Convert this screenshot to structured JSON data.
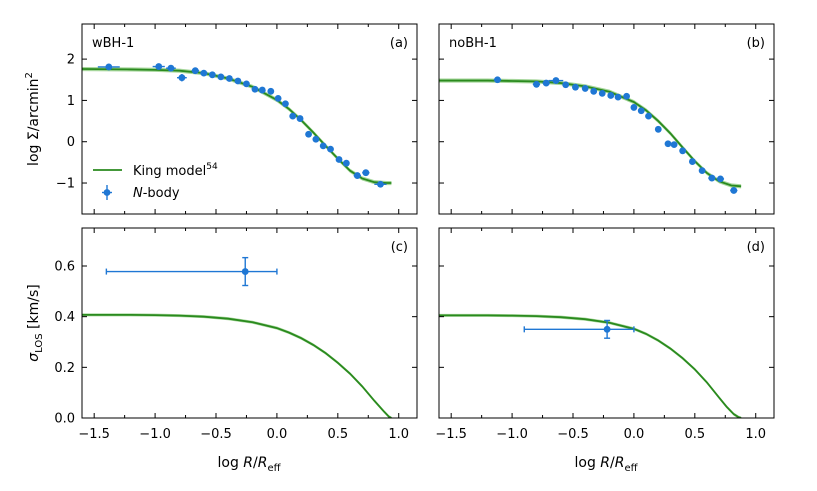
{
  "colors": {
    "model": "#2a8a1e",
    "band": "#7fc46f",
    "nbody": "#1f77d4"
  },
  "chart_data": [
    {
      "id": "a",
      "type": "scatter",
      "panel_label": "(a)",
      "model_label": "wBH-1",
      "xlim": [
        -1.6,
        1.15
      ],
      "ylim": [
        -1.75,
        2.85
      ],
      "yticks": [
        2,
        1,
        0,
        -1
      ],
      "ylabel_parts": [
        "log ",
        "Σ",
        "/arcmin",
        "2"
      ],
      "model_curve": {
        "x": [
          -1.6,
          -1.2,
          -1.0,
          -0.8,
          -0.6,
          -0.4,
          -0.2,
          0.0,
          0.1,
          0.2,
          0.3,
          0.4,
          0.5,
          0.6,
          0.7,
          0.8,
          0.9,
          0.94
        ],
        "y": [
          1.76,
          1.75,
          1.74,
          1.72,
          1.66,
          1.53,
          1.33,
          1.01,
          0.79,
          0.52,
          0.22,
          -0.1,
          -0.41,
          -0.7,
          -0.89,
          -0.98,
          -1.0,
          -1.0
        ]
      },
      "model_band": 0.05,
      "points": [
        {
          "x": -1.38,
          "y": 1.81,
          "xerr": 0.09,
          "yerr": 0.07
        },
        {
          "x": -0.97,
          "y": 1.82,
          "xerr": 0.05,
          "yerr": 0.06
        },
        {
          "x": -0.87,
          "y": 1.78,
          "xerr": 0.04,
          "yerr": 0.06
        },
        {
          "x": -0.78,
          "y": 1.55,
          "xerr": 0.04,
          "yerr": 0.09
        },
        {
          "x": -0.67,
          "y": 1.72,
          "xerr": 0.03,
          "yerr": 0.05
        },
        {
          "x": -0.6,
          "y": 1.66,
          "xerr": 0.03,
          "yerr": 0.05
        },
        {
          "x": -0.53,
          "y": 1.62,
          "xerr": 0.02,
          "yerr": 0.05
        },
        {
          "x": -0.46,
          "y": 1.57,
          "xerr": 0.02,
          "yerr": 0.05
        },
        {
          "x": -0.39,
          "y": 1.53,
          "xerr": 0.02,
          "yerr": 0.05
        },
        {
          "x": -0.32,
          "y": 1.47,
          "xerr": 0.02,
          "yerr": 0.05
        },
        {
          "x": -0.25,
          "y": 1.4,
          "xerr": 0.02,
          "yerr": 0.05
        },
        {
          "x": -0.18,
          "y": 1.27,
          "xerr": 0.02,
          "yerr": 0.05
        },
        {
          "x": -0.12,
          "y": 1.25,
          "xerr": 0.02,
          "yerr": 0.05
        },
        {
          "x": -0.05,
          "y": 1.22,
          "xerr": 0.02,
          "yerr": 0.05
        },
        {
          "x": 0.01,
          "y": 1.05,
          "xerr": 0.02,
          "yerr": 0.05
        },
        {
          "x": 0.07,
          "y": 0.92,
          "xerr": 0.02,
          "yerr": 0.05
        },
        {
          "x": 0.13,
          "y": 0.62,
          "xerr": 0.02,
          "yerr": 0.05
        },
        {
          "x": 0.19,
          "y": 0.56,
          "xerr": 0.02,
          "yerr": 0.05
        },
        {
          "x": 0.26,
          "y": 0.18,
          "xerr": 0.02,
          "yerr": 0.05
        },
        {
          "x": 0.32,
          "y": 0.06,
          "xerr": 0.02,
          "yerr": 0.05
        },
        {
          "x": 0.38,
          "y": -0.1,
          "xerr": 0.02,
          "yerr": 0.05
        },
        {
          "x": 0.44,
          "y": -0.18,
          "xerr": 0.02,
          "yerr": 0.05
        },
        {
          "x": 0.51,
          "y": -0.43,
          "xerr": 0.02,
          "yerr": 0.05
        },
        {
          "x": 0.57,
          "y": -0.52,
          "xerr": 0.02,
          "yerr": 0.05
        },
        {
          "x": 0.66,
          "y": -0.82,
          "xerr": 0.03,
          "yerr": 0.05
        },
        {
          "x": 0.73,
          "y": -0.75,
          "xerr": 0.03,
          "yerr": 0.05
        },
        {
          "x": 0.85,
          "y": -1.03,
          "xerr": 0.05,
          "yerr": 0.06
        }
      ]
    },
    {
      "id": "b",
      "type": "scatter",
      "panel_label": "(b)",
      "model_label": "noBH-1",
      "xlim": [
        -1.6,
        1.15
      ],
      "ylim": [
        -1.75,
        2.85
      ],
      "yticks": [
        2,
        1,
        0,
        -1
      ],
      "model_curve": {
        "x": [
          -1.6,
          -1.2,
          -1.0,
          -0.8,
          -0.6,
          -0.4,
          -0.2,
          0.0,
          0.1,
          0.2,
          0.3,
          0.4,
          0.5,
          0.6,
          0.7,
          0.8,
          0.88
        ],
        "y": [
          1.48,
          1.48,
          1.47,
          1.46,
          1.42,
          1.34,
          1.21,
          0.96,
          0.76,
          0.5,
          0.2,
          -0.14,
          -0.47,
          -0.76,
          -0.96,
          -1.06,
          -1.08
        ]
      },
      "model_band": 0.05,
      "points": [
        {
          "x": -1.12,
          "y": 1.5,
          "xerr": 0.03,
          "yerr": 0.05
        },
        {
          "x": -0.8,
          "y": 1.39,
          "xerr": 0.03,
          "yerr": 0.06
        },
        {
          "x": -0.72,
          "y": 1.42,
          "xerr": 0.03,
          "yerr": 0.05
        },
        {
          "x": -0.64,
          "y": 1.48,
          "xerr": 0.06,
          "yerr": 0.05
        },
        {
          "x": -0.56,
          "y": 1.38,
          "xerr": 0.02,
          "yerr": 0.05
        },
        {
          "x": -0.48,
          "y": 1.32,
          "xerr": 0.02,
          "yerr": 0.05
        },
        {
          "x": -0.4,
          "y": 1.29,
          "xerr": 0.02,
          "yerr": 0.05
        },
        {
          "x": -0.33,
          "y": 1.22,
          "xerr": 0.02,
          "yerr": 0.05
        },
        {
          "x": -0.26,
          "y": 1.17,
          "xerr": 0.02,
          "yerr": 0.05
        },
        {
          "x": -0.19,
          "y": 1.12,
          "xerr": 0.02,
          "yerr": 0.05
        },
        {
          "x": -0.13,
          "y": 1.08,
          "xerr": 0.02,
          "yerr": 0.05
        },
        {
          "x": -0.06,
          "y": 1.1,
          "xerr": 0.02,
          "yerr": 0.05
        },
        {
          "x": 0.0,
          "y": 0.83,
          "xerr": 0.02,
          "yerr": 0.05
        },
        {
          "x": 0.06,
          "y": 0.75,
          "xerr": 0.02,
          "yerr": 0.05
        },
        {
          "x": 0.12,
          "y": 0.62,
          "xerr": 0.02,
          "yerr": 0.05
        },
        {
          "x": 0.2,
          "y": 0.3,
          "xerr": 0.02,
          "yerr": 0.05
        },
        {
          "x": 0.28,
          "y": -0.05,
          "xerr": 0.02,
          "yerr": 0.05
        },
        {
          "x": 0.33,
          "y": -0.07,
          "xerr": 0.02,
          "yerr": 0.05
        },
        {
          "x": 0.4,
          "y": -0.22,
          "xerr": 0.02,
          "yerr": 0.05
        },
        {
          "x": 0.48,
          "y": -0.48,
          "xerr": 0.02,
          "yerr": 0.05
        },
        {
          "x": 0.56,
          "y": -0.7,
          "xerr": 0.02,
          "yerr": 0.05
        },
        {
          "x": 0.64,
          "y": -0.88,
          "xerr": 0.03,
          "yerr": 0.05
        },
        {
          "x": 0.71,
          "y": -0.9,
          "xerr": 0.03,
          "yerr": 0.05
        },
        {
          "x": 0.82,
          "y": -1.18,
          "xerr": 0.03,
          "yerr": 0.05
        }
      ]
    },
    {
      "id": "c",
      "type": "scatter",
      "panel_label": "(c)",
      "xlim": [
        -1.6,
        1.15
      ],
      "ylim": [
        0,
        0.75
      ],
      "yticks": [
        0.6,
        0.4,
        0.2,
        0.0
      ],
      "ytick_labels": [
        "0.6",
        "0.4",
        "0.2",
        "0.0"
      ],
      "xticks": [
        -1.5,
        -1.0,
        -0.5,
        0.0,
        0.5,
        1.0
      ],
      "xtick_labels": [
        "−1.5",
        "−1.0",
        "−0.5",
        "0.0",
        "0.5",
        "1.0"
      ],
      "xlabel_parts": [
        "log ",
        "R",
        "/",
        "R",
        "eff"
      ],
      "ylabel_parts": [
        "σ",
        "LOS",
        " [km/s]"
      ],
      "model_curve": {
        "x": [
          -1.6,
          -1.2,
          -1.0,
          -0.8,
          -0.6,
          -0.4,
          -0.2,
          0.0,
          0.1,
          0.2,
          0.3,
          0.4,
          0.5,
          0.6,
          0.7,
          0.8,
          0.88,
          0.92,
          0.94
        ],
        "y": [
          0.407,
          0.407,
          0.406,
          0.404,
          0.4,
          0.392,
          0.378,
          0.355,
          0.337,
          0.315,
          0.288,
          0.256,
          0.218,
          0.175,
          0.125,
          0.068,
          0.025,
          0.005,
          0.0
        ]
      },
      "model_band": 0.006,
      "points": [
        {
          "x": -0.26,
          "y": 0.578,
          "xerr_lo": 1.14,
          "xerr_hi": 0.26,
          "yerr": 0.055
        }
      ]
    },
    {
      "id": "d",
      "type": "scatter",
      "panel_label": "(d)",
      "xlim": [
        -1.6,
        1.15
      ],
      "ylim": [
        0,
        0.75
      ],
      "yticks": [
        0.6,
        0.4,
        0.2,
        0.0
      ],
      "xticks": [
        -1.5,
        -1.0,
        -0.5,
        0.0,
        0.5,
        1.0
      ],
      "xtick_labels": [
        "−1.5",
        "−1.0",
        "−0.5",
        "0.0",
        "0.5",
        "1.0"
      ],
      "xlabel_parts": [
        "log ",
        "R",
        "/",
        "R",
        "eff"
      ],
      "model_curve": {
        "x": [
          -1.6,
          -1.2,
          -1.0,
          -0.8,
          -0.6,
          -0.4,
          -0.2,
          0.0,
          0.1,
          0.2,
          0.3,
          0.4,
          0.5,
          0.6,
          0.7,
          0.76,
          0.82,
          0.86,
          0.88
        ],
        "y": [
          0.405,
          0.405,
          0.404,
          0.402,
          0.398,
          0.39,
          0.376,
          0.352,
          0.332,
          0.306,
          0.274,
          0.236,
          0.192,
          0.14,
          0.08,
          0.045,
          0.015,
          0.003,
          0.0
        ]
      },
      "model_band": 0.006,
      "points": [
        {
          "x": -0.22,
          "y": 0.35,
          "xerr_lo": 0.68,
          "xerr_hi": 0.22,
          "yerr": 0.035
        }
      ]
    }
  ],
  "legend": {
    "model_text": "King model",
    "model_sup": "54",
    "nbody_italic": "N",
    "nbody_text": "-body"
  }
}
